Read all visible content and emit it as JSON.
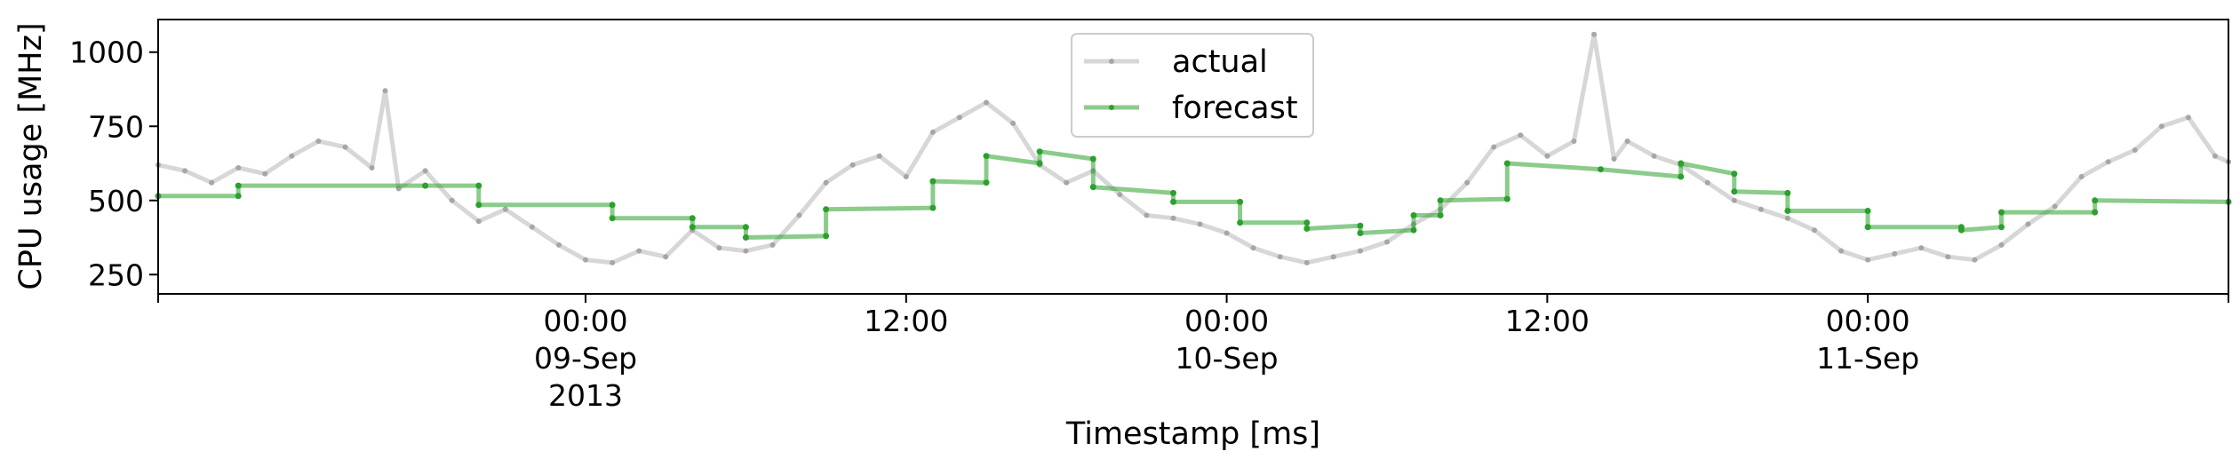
{
  "chart_data": {
    "type": "line",
    "title": "",
    "xlabel": "Timestamp [ms]",
    "ylabel": "CPU usage [MHz]",
    "x_start": "2013-09-08 08:00",
    "x_end": "2013-09-11 13:30",
    "ylim": [
      185,
      1110
    ],
    "y_ticks": [
      {
        "value": 250,
        "label": "250"
      },
      {
        "value": 500,
        "label": "500"
      },
      {
        "value": 750,
        "label": "750"
      },
      {
        "value": 1000,
        "label": "1000"
      }
    ],
    "x_ticks": [
      {
        "t": "2013-09-09 00:00",
        "lines": [
          "00:00",
          "09-Sep",
          "2013"
        ]
      },
      {
        "t": "2013-09-09 12:00",
        "lines": [
          "12:00"
        ]
      },
      {
        "t": "2013-09-10 00:00",
        "lines": [
          "00:00",
          "10-Sep"
        ]
      },
      {
        "t": "2013-09-10 12:00",
        "lines": [
          "12:00"
        ]
      },
      {
        "t": "2013-09-11 00:00",
        "lines": [
          "00:00",
          "11-Sep"
        ]
      }
    ],
    "x_minor_ticks": [
      "2013-09-08 08:00",
      "2013-09-11 13:30"
    ],
    "grid": false,
    "legend_placement": "top-center",
    "series": [
      {
        "name": "actual",
        "color": "#a6a6a6",
        "points": [
          [
            "2013-09-08 08:00",
            620
          ],
          [
            "2013-09-08 09:00",
            600
          ],
          [
            "2013-09-08 10:00",
            560
          ],
          [
            "2013-09-08 11:00",
            610
          ],
          [
            "2013-09-08 12:00",
            590
          ],
          [
            "2013-09-08 13:00",
            650
          ],
          [
            "2013-09-08 14:00",
            700
          ],
          [
            "2013-09-08 15:00",
            680
          ],
          [
            "2013-09-08 16:00",
            610
          ],
          [
            "2013-09-08 16:30",
            870
          ],
          [
            "2013-09-08 17:00",
            540
          ],
          [
            "2013-09-08 18:00",
            600
          ],
          [
            "2013-09-08 19:00",
            500
          ],
          [
            "2013-09-08 20:00",
            430
          ],
          [
            "2013-09-08 21:00",
            470
          ],
          [
            "2013-09-08 22:00",
            410
          ],
          [
            "2013-09-08 23:00",
            350
          ],
          [
            "2013-09-09 00:00",
            300
          ],
          [
            "2013-09-09 01:00",
            290
          ],
          [
            "2013-09-09 02:00",
            330
          ],
          [
            "2013-09-09 03:00",
            310
          ],
          [
            "2013-09-09 04:00",
            400
          ],
          [
            "2013-09-09 05:00",
            340
          ],
          [
            "2013-09-09 06:00",
            330
          ],
          [
            "2013-09-09 07:00",
            350
          ],
          [
            "2013-09-09 08:00",
            450
          ],
          [
            "2013-09-09 09:00",
            560
          ],
          [
            "2013-09-09 10:00",
            620
          ],
          [
            "2013-09-09 11:00",
            650
          ],
          [
            "2013-09-09 12:00",
            580
          ],
          [
            "2013-09-09 13:00",
            730
          ],
          [
            "2013-09-09 14:00",
            780
          ],
          [
            "2013-09-09 15:00",
            830
          ],
          [
            "2013-09-09 16:00",
            760
          ],
          [
            "2013-09-09 17:00",
            620
          ],
          [
            "2013-09-09 18:00",
            560
          ],
          [
            "2013-09-09 19:00",
            600
          ],
          [
            "2013-09-09 20:00",
            520
          ],
          [
            "2013-09-09 21:00",
            450
          ],
          [
            "2013-09-09 22:00",
            440
          ],
          [
            "2013-09-09 23:00",
            420
          ],
          [
            "2013-09-10 00:00",
            390
          ],
          [
            "2013-09-10 01:00",
            340
          ],
          [
            "2013-09-10 02:00",
            310
          ],
          [
            "2013-09-10 03:00",
            290
          ],
          [
            "2013-09-10 04:00",
            310
          ],
          [
            "2013-09-10 05:00",
            330
          ],
          [
            "2013-09-10 06:00",
            360
          ],
          [
            "2013-09-10 07:00",
            420
          ],
          [
            "2013-09-10 08:00",
            470
          ],
          [
            "2013-09-10 09:00",
            560
          ],
          [
            "2013-09-10 10:00",
            680
          ],
          [
            "2013-09-10 11:00",
            720
          ],
          [
            "2013-09-10 12:00",
            650
          ],
          [
            "2013-09-10 13:00",
            700
          ],
          [
            "2013-09-10 13:45",
            1060
          ],
          [
            "2013-09-10 14:30",
            640
          ],
          [
            "2013-09-10 15:00",
            700
          ],
          [
            "2013-09-10 16:00",
            650
          ],
          [
            "2013-09-10 17:00",
            620
          ],
          [
            "2013-09-10 18:00",
            560
          ],
          [
            "2013-09-10 19:00",
            500
          ],
          [
            "2013-09-10 20:00",
            470
          ],
          [
            "2013-09-10 21:00",
            440
          ],
          [
            "2013-09-10 22:00",
            400
          ],
          [
            "2013-09-10 23:00",
            330
          ],
          [
            "2013-09-11 00:00",
            300
          ],
          [
            "2013-09-11 01:00",
            320
          ],
          [
            "2013-09-11 02:00",
            340
          ],
          [
            "2013-09-11 03:00",
            310
          ],
          [
            "2013-09-11 04:00",
            300
          ],
          [
            "2013-09-11 05:00",
            350
          ],
          [
            "2013-09-11 06:00",
            420
          ],
          [
            "2013-09-11 07:00",
            480
          ],
          [
            "2013-09-11 08:00",
            580
          ],
          [
            "2013-09-11 09:00",
            630
          ],
          [
            "2013-09-11 10:00",
            670
          ],
          [
            "2013-09-11 11:00",
            750
          ],
          [
            "2013-09-11 12:00",
            780
          ],
          [
            "2013-09-11 13:00",
            650
          ],
          [
            "2013-09-11 13:30",
            630
          ]
        ]
      },
      {
        "name": "forecast",
        "color": "#2ca02c",
        "points": [
          [
            "2013-09-08 08:00",
            515
          ],
          [
            "2013-09-08 11:00",
            515
          ],
          [
            "2013-09-08 11:00",
            550
          ],
          [
            "2013-09-08 18:00",
            550
          ],
          [
            "2013-09-08 20:00",
            550
          ],
          [
            "2013-09-08 20:00",
            485
          ],
          [
            "2013-09-09 01:00",
            485
          ],
          [
            "2013-09-09 01:00",
            440
          ],
          [
            "2013-09-09 04:00",
            440
          ],
          [
            "2013-09-09 04:00",
            410
          ],
          [
            "2013-09-09 06:00",
            410
          ],
          [
            "2013-09-09 06:00",
            375
          ],
          [
            "2013-09-09 09:00",
            380
          ],
          [
            "2013-09-09 09:00",
            470
          ],
          [
            "2013-09-09 13:00",
            475
          ],
          [
            "2013-09-09 13:00",
            565
          ],
          [
            "2013-09-09 15:00",
            560
          ],
          [
            "2013-09-09 15:00",
            650
          ],
          [
            "2013-09-09 17:00",
            625
          ],
          [
            "2013-09-09 17:00",
            665
          ],
          [
            "2013-09-09 19:00",
            640
          ],
          [
            "2013-09-09 19:00",
            545
          ],
          [
            "2013-09-09 22:00",
            525
          ],
          [
            "2013-09-09 22:00",
            495
          ],
          [
            "2013-09-10 00:30",
            495
          ],
          [
            "2013-09-10 00:30",
            425
          ],
          [
            "2013-09-10 03:00",
            425
          ],
          [
            "2013-09-10 03:00",
            405
          ],
          [
            "2013-09-10 05:00",
            415
          ],
          [
            "2013-09-10 05:00",
            390
          ],
          [
            "2013-09-10 07:00",
            400
          ],
          [
            "2013-09-10 07:00",
            450
          ],
          [
            "2013-09-10 08:00",
            450
          ],
          [
            "2013-09-10 08:00",
            500
          ],
          [
            "2013-09-10 10:30",
            505
          ],
          [
            "2013-09-10 10:30",
            625
          ],
          [
            "2013-09-10 14:00",
            605
          ],
          [
            "2013-09-10 17:00",
            580
          ],
          [
            "2013-09-10 17:00",
            625
          ],
          [
            "2013-09-10 19:00",
            590
          ],
          [
            "2013-09-10 19:00",
            530
          ],
          [
            "2013-09-10 21:00",
            525
          ],
          [
            "2013-09-10 21:00",
            465
          ],
          [
            "2013-09-11 00:00",
            465
          ],
          [
            "2013-09-11 00:00",
            410
          ],
          [
            "2013-09-11 03:30",
            410
          ],
          [
            "2013-09-11 03:30",
            400
          ],
          [
            "2013-09-11 05:00",
            410
          ],
          [
            "2013-09-11 05:00",
            460
          ],
          [
            "2013-09-11 08:30",
            460
          ],
          [
            "2013-09-11 08:30",
            500
          ],
          [
            "2013-09-11 13:30",
            495
          ]
        ]
      }
    ]
  }
}
